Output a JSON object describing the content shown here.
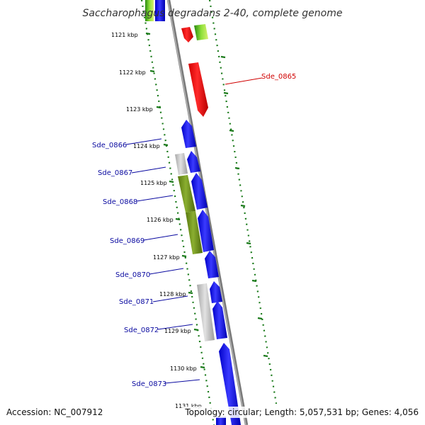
{
  "title": "Saccharophagus degradans 2-40, complete genome",
  "footer": {
    "accession": "Accession: NC_007912",
    "summary": "Topology: circular; Length: 5,057,531 bp; Genes: 4,056"
  },
  "kbp_labels": [
    "1121 kbp",
    "1122 kbp",
    "1123 kbp",
    "1124 kbp",
    "1125 kbp",
    "1126 kbp",
    "1127 kbp",
    "1128 kbp",
    "1129 kbp",
    "1130 kbp",
    "1131 kbp"
  ],
  "gene_labels": [
    {
      "name": "Sde_0865",
      "color": "#d00000"
    },
    {
      "name": "Sde_0866",
      "color": "#0a0aa0"
    },
    {
      "name": "Sde_0867",
      "color": "#0a0aa0"
    },
    {
      "name": "Sde_0868",
      "color": "#0a0aa0"
    },
    {
      "name": "Sde_0869",
      "color": "#0a0aa0"
    },
    {
      "name": "Sde_0870",
      "color": "#0a0aa0"
    },
    {
      "name": "Sde_0871",
      "color": "#0a0aa0"
    },
    {
      "name": "Sde_0872",
      "color": "#0a0aa0"
    },
    {
      "name": "Sde_0873",
      "color": "#0a0aa0"
    }
  ],
  "colors": {
    "forward_gene": "#1010e0",
    "reverse_gene_red": "#e01010",
    "cog_green": "#6b8e1f",
    "cog_gray": "#c4c4c4",
    "backbone": "#8a8a8a",
    "tick_dots": "#1a7a1a"
  }
}
